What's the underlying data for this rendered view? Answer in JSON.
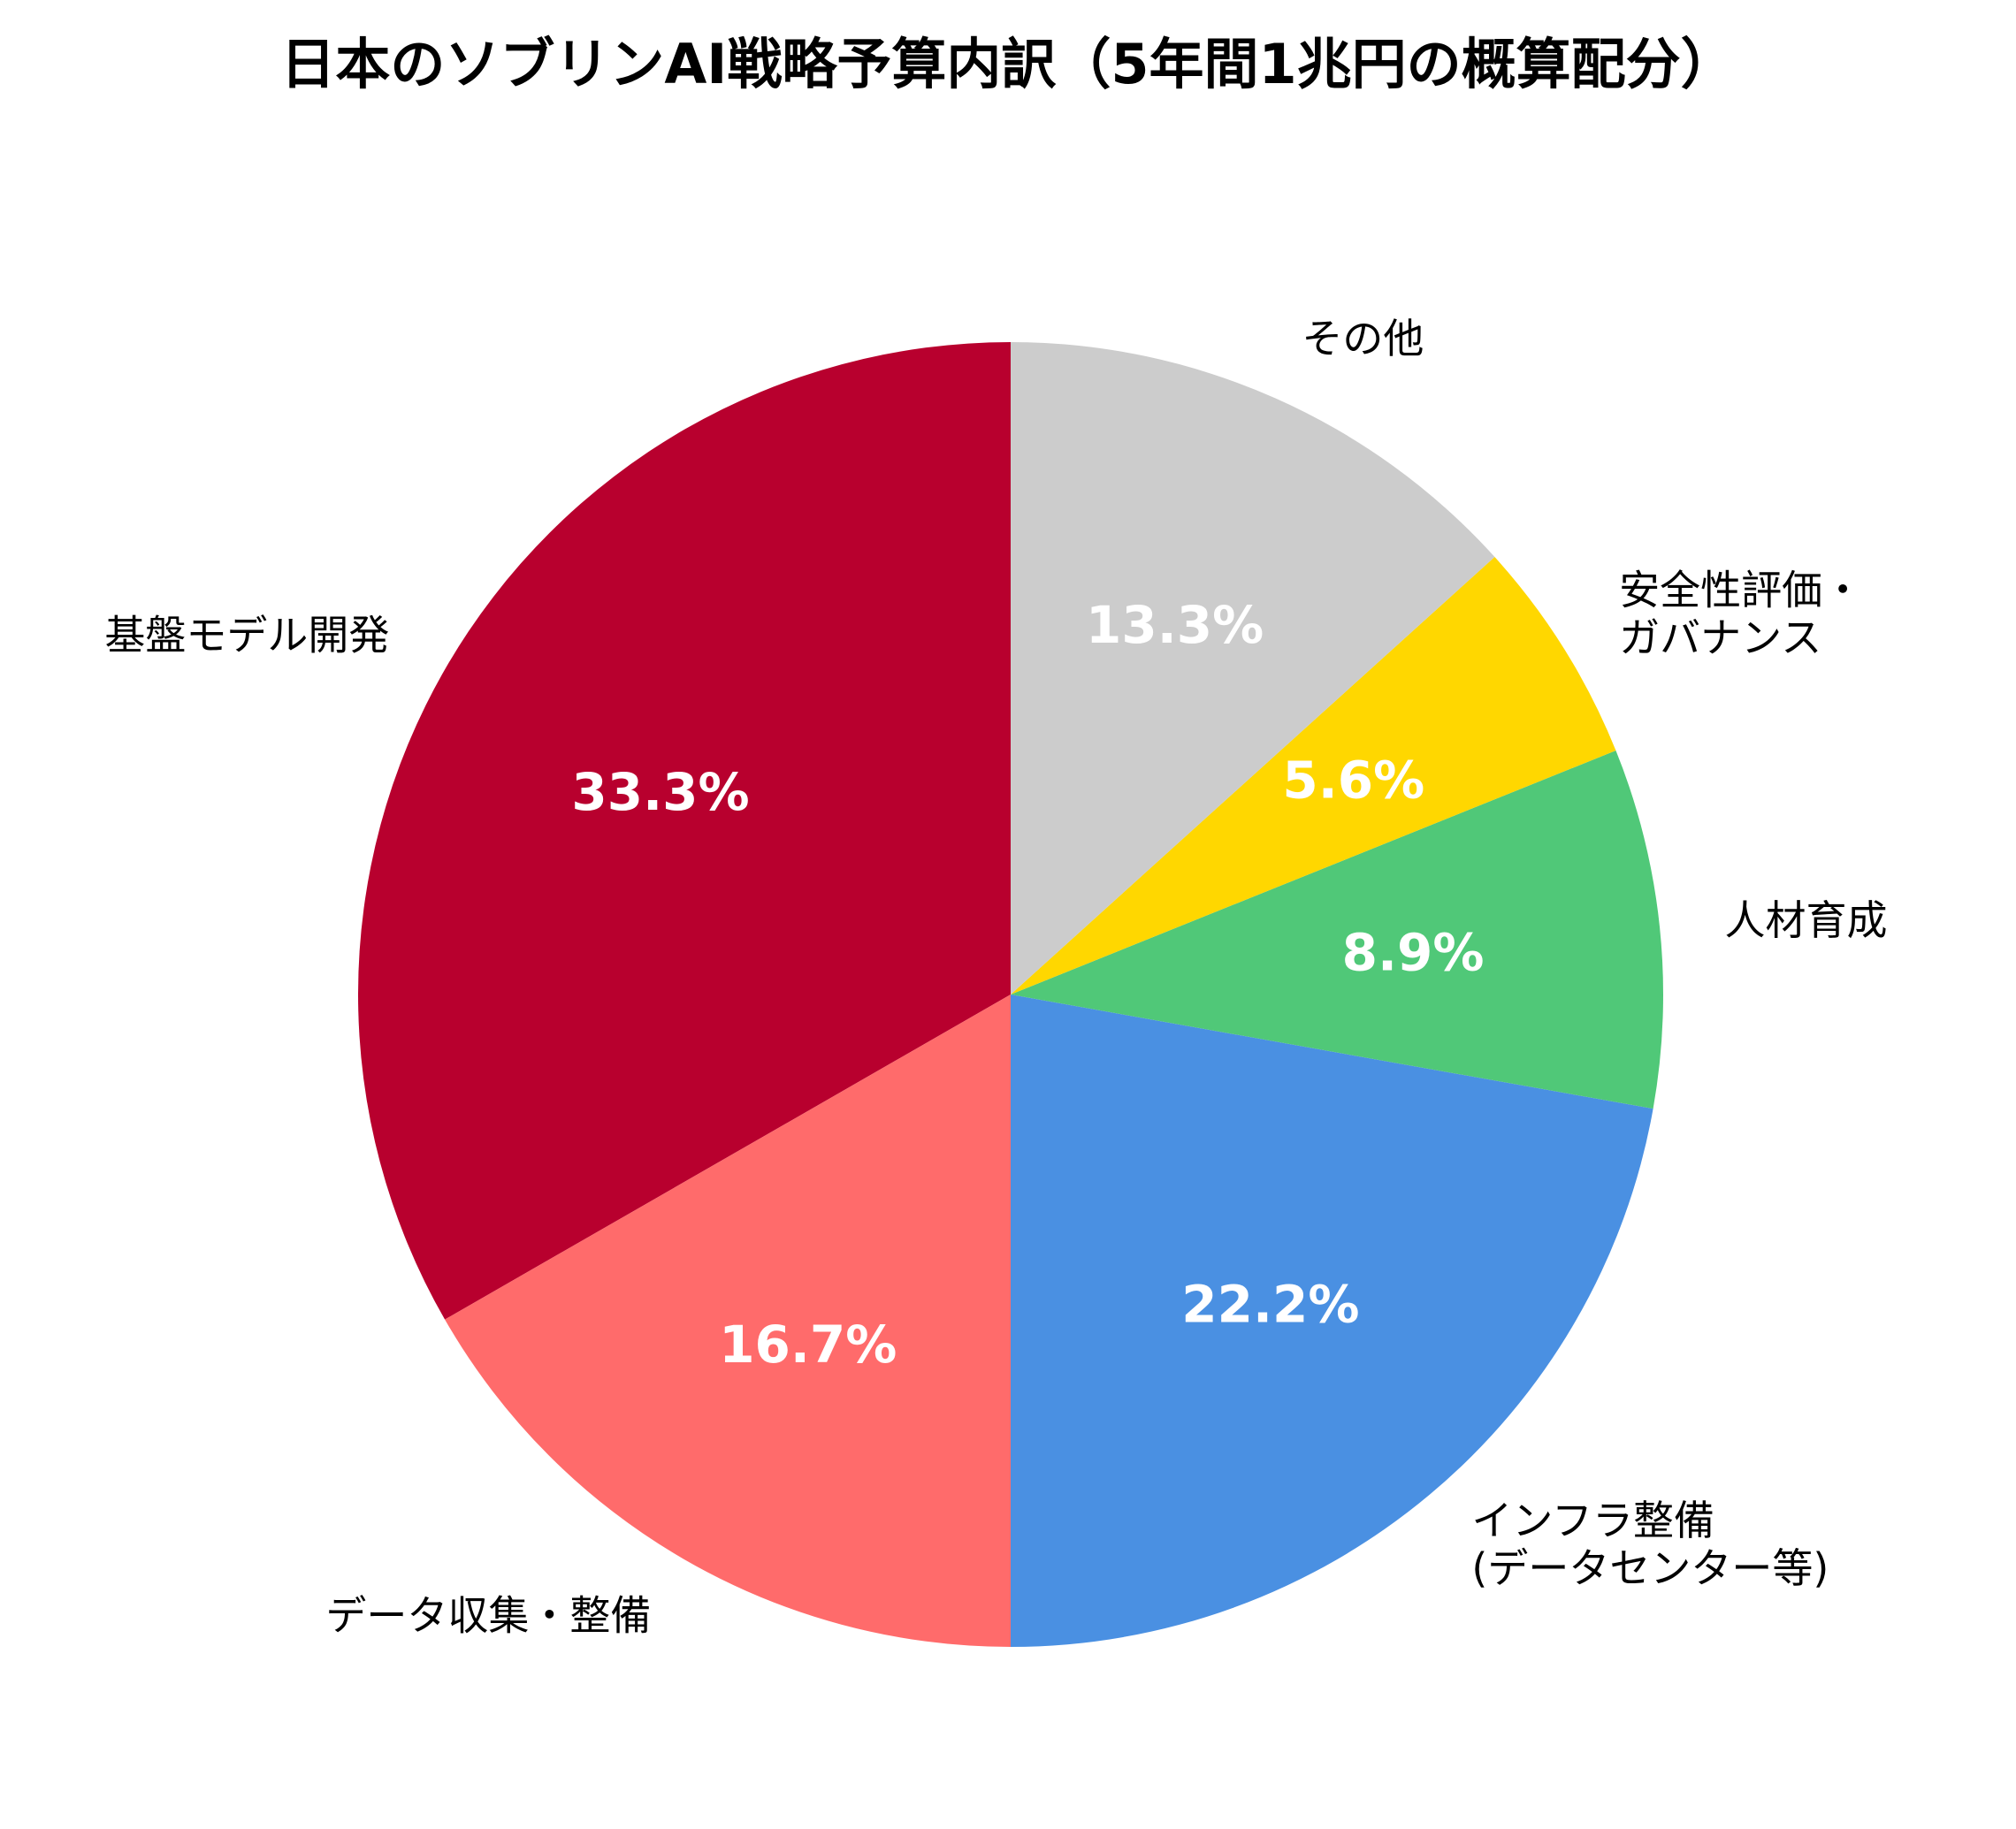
{
  "chart_data": {
    "type": "pie",
    "title": "日本のソブリンAI戦略予算内訳（5年間1兆円の概算配分）",
    "start_angle_deg": 90,
    "direction": "counterclockwise",
    "slices": [
      {
        "label": [
          "基盤モデル開発"
        ],
        "value": 33.3,
        "pct_label": "33.3%",
        "color": "#B8002E"
      },
      {
        "label": [
          "データ収集・整備"
        ],
        "value": 16.7,
        "pct_label": "16.7%",
        "color": "#FF6B6B"
      },
      {
        "label": [
          "インフラ整備",
          "(データセンター等)"
        ],
        "value": 22.2,
        "pct_label": "22.2%",
        "color": "#4A90E2"
      },
      {
        "label": [
          "人材育成"
        ],
        "value": 8.9,
        "pct_label": "8.9%",
        "color": "#50C878"
      },
      {
        "label": [
          "安全性評価・",
          "ガバナンス"
        ],
        "value": 5.6,
        "pct_label": "5.6%",
        "color": "#FFD700"
      },
      {
        "label": [
          "その他"
        ],
        "value": 13.3,
        "pct_label": "13.3%",
        "color": "#CCCCCC"
      }
    ]
  }
}
